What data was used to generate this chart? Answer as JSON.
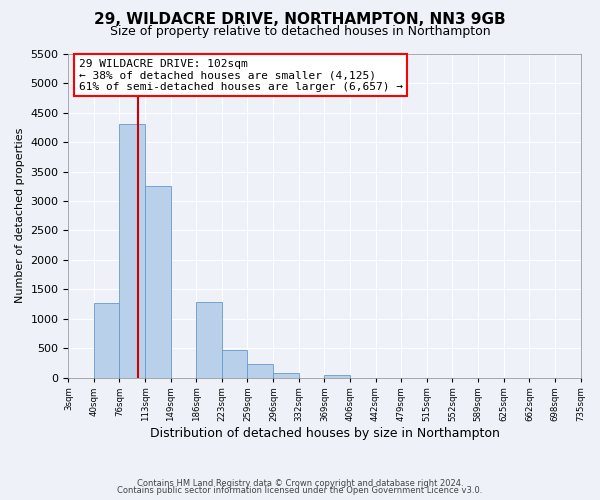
{
  "title": "29, WILDACRE DRIVE, NORTHAMPTON, NN3 9GB",
  "subtitle": "Size of property relative to detached houses in Northampton",
  "xlabel": "Distribution of detached houses by size in Northampton",
  "ylabel": "Number of detached properties",
  "bar_color": "#b8d0ea",
  "bar_edge_color": "#6699cc",
  "background_color": "#eef2f8",
  "grid_color": "#ffffff",
  "bin_labels": [
    "3sqm",
    "40sqm",
    "76sqm",
    "113sqm",
    "149sqm",
    "186sqm",
    "223sqm",
    "259sqm",
    "296sqm",
    "332sqm",
    "369sqm",
    "406sqm",
    "442sqm",
    "479sqm",
    "515sqm",
    "552sqm",
    "589sqm",
    "625sqm",
    "662sqm",
    "698sqm",
    "735sqm"
  ],
  "bar_heights": [
    0,
    1270,
    4310,
    3250,
    0,
    1280,
    470,
    230,
    80,
    0,
    50,
    0,
    0,
    0,
    0,
    0,
    0,
    0,
    0,
    0
  ],
  "ylim": [
    0,
    5500
  ],
  "yticks": [
    0,
    500,
    1000,
    1500,
    2000,
    2500,
    3000,
    3500,
    4000,
    4500,
    5000,
    5500
  ],
  "red_line_x": 102,
  "bin_edges": [
    3,
    40,
    76,
    113,
    149,
    186,
    223,
    259,
    296,
    332,
    369,
    406,
    442,
    479,
    515,
    552,
    589,
    625,
    662,
    698,
    735
  ],
  "annotation_title": "29 WILDACRE DRIVE: 102sqm",
  "annotation_line1": "← 38% of detached houses are smaller (4,125)",
  "annotation_line2": "61% of semi-detached houses are larger (6,657) →",
  "footer1": "Contains HM Land Registry data © Crown copyright and database right 2024.",
  "footer2": "Contains public sector information licensed under the Open Government Licence v3.0."
}
